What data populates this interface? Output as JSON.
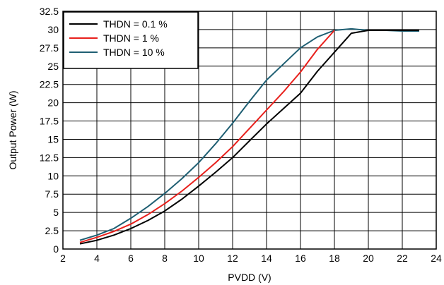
{
  "chart_data": {
    "type": "line",
    "xlabel": "PVDD (V)",
    "ylabel": "Output Power (W)",
    "xlim": [
      2,
      24
    ],
    "ylim": [
      0,
      32.5
    ],
    "xticks": [
      "2",
      "4",
      "6",
      "8",
      "10",
      "12",
      "14",
      "16",
      "18",
      "20",
      "22",
      "24"
    ],
    "yticks": [
      "0",
      "2.5",
      "5",
      "7.5",
      "10",
      "12.5",
      "15",
      "17.5",
      "20",
      "22.5",
      "25",
      "27.5",
      "30",
      "32.5"
    ],
    "grid": true,
    "legend_position": "top-left",
    "series": [
      {
        "name": "THDN = 0.1 %",
        "color": "#000000",
        "x": [
          3,
          4,
          5,
          6,
          7,
          8,
          9,
          10,
          11,
          12,
          13,
          14,
          15,
          16,
          17,
          18,
          19,
          20,
          21,
          22,
          23
        ],
        "y": [
          0.7,
          1.2,
          1.9,
          2.8,
          3.9,
          5.2,
          6.8,
          8.6,
          10.5,
          12.5,
          14.8,
          17.1,
          19.2,
          21.3,
          24.3,
          26.9,
          29.5,
          29.9,
          29.9,
          29.9,
          29.9
        ]
      },
      {
        "name": "THDN = 1 %",
        "color": "#e8201c",
        "x": [
          3,
          4,
          5,
          6,
          7,
          8,
          9,
          10,
          11,
          12,
          13,
          14,
          15,
          16,
          17,
          18
        ],
        "y": [
          0.9,
          1.6,
          2.4,
          3.4,
          4.7,
          6.2,
          7.9,
          9.8,
          11.8,
          14.0,
          16.5,
          19.0,
          21.5,
          24.2,
          27.3,
          29.9
        ]
      },
      {
        "name": "THDN = 10 %",
        "color": "#1f5f73",
        "x": [
          3,
          4,
          5,
          6,
          7,
          8,
          9,
          10,
          11,
          12,
          13,
          14,
          15,
          16,
          17,
          18,
          19,
          20,
          21,
          22,
          23
        ],
        "y": [
          1.2,
          1.9,
          2.8,
          4.2,
          5.8,
          7.6,
          9.6,
          11.8,
          14.4,
          17.2,
          20.2,
          23.1,
          25.3,
          27.5,
          29.0,
          29.9,
          30.1,
          29.9,
          29.9,
          29.8,
          29.8
        ]
      }
    ]
  }
}
